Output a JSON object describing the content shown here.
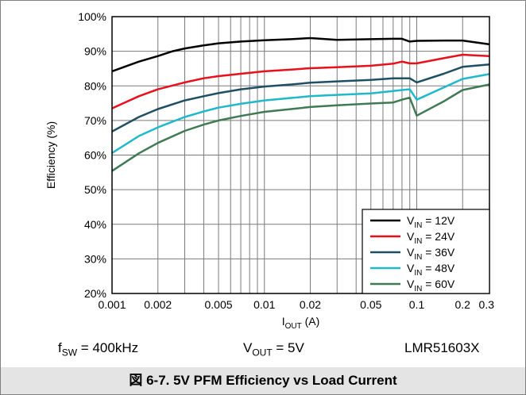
{
  "chart_data": {
    "type": "line",
    "title": "",
    "xlabel": {
      "main": "I",
      "sub": "OUT",
      "suffix": " (A)"
    },
    "ylabel": "Efficiency (%)",
    "x_scale": "log",
    "xlim": [
      0.001,
      0.3
    ],
    "ylim": [
      20,
      100
    ],
    "x_ticks": [
      {
        "value": 0.001,
        "label": "0.001"
      },
      {
        "value": 0.002,
        "label": "0.002"
      },
      {
        "value": 0.005,
        "label": "0.005"
      },
      {
        "value": 0.01,
        "label": "0.01"
      },
      {
        "value": 0.02,
        "label": "0.02"
      },
      {
        "value": 0.05,
        "label": "0.05"
      },
      {
        "value": 0.1,
        "label": "0.1"
      },
      {
        "value": 0.2,
        "label": "0.2"
      },
      {
        "value": 0.3,
        "label": "0.3"
      }
    ],
    "y_ticks": [
      {
        "value": 20,
        "label": "20%"
      },
      {
        "value": 30,
        "label": "30%"
      },
      {
        "value": 40,
        "label": "40%"
      },
      {
        "value": 50,
        "label": "50%"
      },
      {
        "value": 60,
        "label": "60%"
      },
      {
        "value": 70,
        "label": "70%"
      },
      {
        "value": 80,
        "label": "80%"
      },
      {
        "value": 90,
        "label": "90%"
      },
      {
        "value": 100,
        "label": "100%"
      }
    ],
    "grid": true,
    "legend_position": "bottom-right",
    "series": [
      {
        "name": "VIN = 12V",
        "label_main": "V",
        "label_sub": "IN",
        "label_suffix": " = 12V",
        "color": "#000000",
        "points": [
          [
            0.001,
            84.2
          ],
          [
            0.0015,
            87
          ],
          [
            0.002,
            88.6
          ],
          [
            0.0025,
            90
          ],
          [
            0.003,
            90.8
          ],
          [
            0.004,
            91.7
          ],
          [
            0.005,
            92.3
          ],
          [
            0.007,
            92.8
          ],
          [
            0.01,
            93.2
          ],
          [
            0.015,
            93.5
          ],
          [
            0.02,
            93.8
          ],
          [
            0.03,
            93.3
          ],
          [
            0.05,
            93.5
          ],
          [
            0.07,
            93.6
          ],
          [
            0.08,
            93.6
          ],
          [
            0.09,
            92.8
          ],
          [
            0.1,
            93
          ],
          [
            0.15,
            93.1
          ],
          [
            0.2,
            93.1
          ],
          [
            0.3,
            92
          ]
        ]
      },
      {
        "name": "VIN = 24V",
        "label_main": "V",
        "label_sub": "IN",
        "label_suffix": " = 24V",
        "color": "#e8101c",
        "points": [
          [
            0.001,
            73.5
          ],
          [
            0.0015,
            77
          ],
          [
            0.002,
            79
          ],
          [
            0.003,
            81
          ],
          [
            0.004,
            82.2
          ],
          [
            0.005,
            82.8
          ],
          [
            0.007,
            83.5
          ],
          [
            0.01,
            84.2
          ],
          [
            0.015,
            84.7
          ],
          [
            0.02,
            85.1
          ],
          [
            0.03,
            85.4
          ],
          [
            0.05,
            85.8
          ],
          [
            0.07,
            86.4
          ],
          [
            0.08,
            87
          ],
          [
            0.09,
            86.5
          ],
          [
            0.1,
            86.5
          ],
          [
            0.15,
            88
          ],
          [
            0.2,
            89
          ],
          [
            0.3,
            88.6
          ]
        ]
      },
      {
        "name": "VIN = 36V",
        "label_main": "V",
        "label_sub": "IN",
        "label_suffix": " = 36V",
        "color": "#1e4f63",
        "points": [
          [
            0.001,
            66.8
          ],
          [
            0.0015,
            71
          ],
          [
            0.002,
            73.3
          ],
          [
            0.003,
            75.8
          ],
          [
            0.004,
            77
          ],
          [
            0.005,
            77.9
          ],
          [
            0.007,
            79
          ],
          [
            0.01,
            79.8
          ],
          [
            0.015,
            80.4
          ],
          [
            0.02,
            80.9
          ],
          [
            0.03,
            81.3
          ],
          [
            0.05,
            81.7
          ],
          [
            0.07,
            82.2
          ],
          [
            0.08,
            82.2
          ],
          [
            0.09,
            82.2
          ],
          [
            0.1,
            81
          ],
          [
            0.15,
            83.5
          ],
          [
            0.2,
            85.5
          ],
          [
            0.3,
            86.2
          ]
        ]
      },
      {
        "name": "VIN = 48V",
        "label_main": "V",
        "label_sub": "IN",
        "label_suffix": " = 48V",
        "color": "#20b8cc",
        "points": [
          [
            0.001,
            60.6
          ],
          [
            0.0015,
            65.5
          ],
          [
            0.002,
            68
          ],
          [
            0.003,
            71
          ],
          [
            0.004,
            72.6
          ],
          [
            0.005,
            73.7
          ],
          [
            0.007,
            74.8
          ],
          [
            0.01,
            75.8
          ],
          [
            0.015,
            76.5
          ],
          [
            0.02,
            77
          ],
          [
            0.03,
            77.4
          ],
          [
            0.05,
            77.8
          ],
          [
            0.07,
            78.5
          ],
          [
            0.08,
            78.8
          ],
          [
            0.09,
            79
          ],
          [
            0.1,
            76
          ],
          [
            0.15,
            79.5
          ],
          [
            0.2,
            82
          ],
          [
            0.3,
            83.4
          ]
        ]
      },
      {
        "name": "VIN = 60V",
        "label_main": "V",
        "label_sub": "IN",
        "label_suffix": " = 60V",
        "color": "#3f7a55",
        "points": [
          [
            0.001,
            55.4
          ],
          [
            0.0015,
            60.5
          ],
          [
            0.002,
            63.5
          ],
          [
            0.003,
            67
          ],
          [
            0.004,
            68.8
          ],
          [
            0.005,
            70
          ],
          [
            0.007,
            71.3
          ],
          [
            0.01,
            72.5
          ],
          [
            0.015,
            73.3
          ],
          [
            0.02,
            73.9
          ],
          [
            0.03,
            74.4
          ],
          [
            0.05,
            74.9
          ],
          [
            0.07,
            75.2
          ],
          [
            0.08,
            76
          ],
          [
            0.09,
            76.6
          ],
          [
            0.1,
            71.4
          ],
          [
            0.15,
            75.5
          ],
          [
            0.2,
            78.8
          ],
          [
            0.3,
            80.4
          ]
        ]
      }
    ]
  },
  "conditions": {
    "fsw": {
      "main": "f",
      "sub": "SW",
      "suffix": " = 400kHz"
    },
    "vout": {
      "main": "V",
      "sub": "OUT",
      "suffix": " = 5V"
    },
    "part": "LMR51603X"
  },
  "caption": "図 6-7. 5V PFM Efficiency vs Load Current"
}
